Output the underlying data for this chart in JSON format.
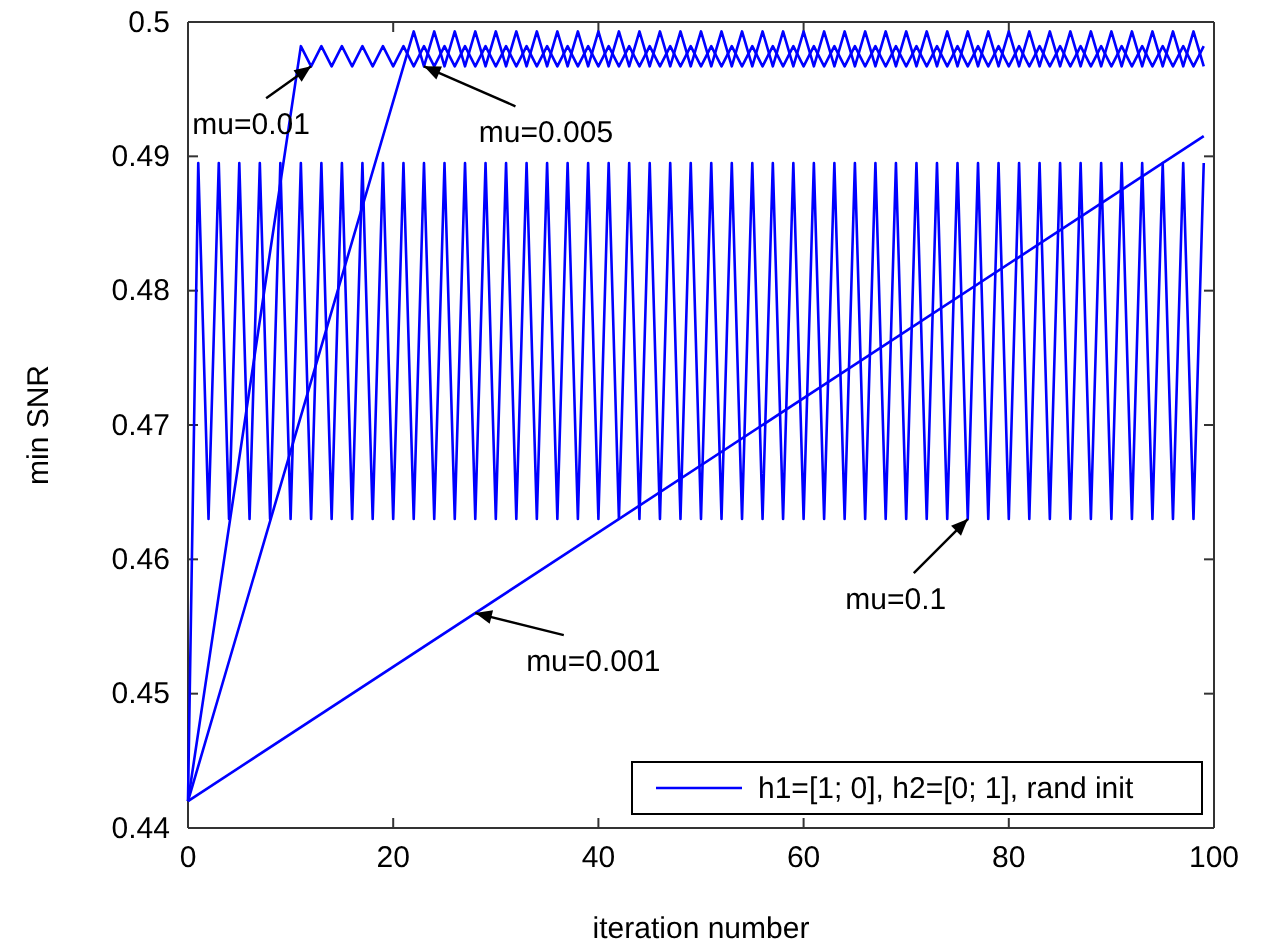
{
  "chart_data": {
    "type": "line",
    "xlabel": "iteration number",
    "ylabel": "min SNR",
    "xlim": [
      0,
      100
    ],
    "ylim": [
      0.44,
      0.5
    ],
    "xticks": [
      0,
      20,
      40,
      60,
      80,
      100
    ],
    "yticks": [
      0.44,
      0.45,
      0.46,
      0.47,
      0.48,
      0.49,
      0.5
    ],
    "grid": false,
    "legend": "bottom right",
    "marker": "none",
    "line_style": "solid",
    "series": [
      {
        "name": "h1=[1; 0], h2=[0; 1], rand init",
        "color": "#0000ff",
        "x": [
          0,
          1,
          2,
          3,
          4,
          5,
          6,
          7,
          8,
          9,
          10,
          11,
          12,
          13,
          14,
          15,
          16,
          17,
          18,
          19,
          20,
          21,
          22,
          23,
          24,
          25,
          26,
          27,
          28,
          29,
          30,
          31,
          32,
          33,
          34,
          35,
          36,
          37,
          38,
          39,
          40,
          41,
          42,
          43,
          44,
          45,
          46,
          47,
          48,
          49,
          50,
          51,
          52,
          53,
          54,
          55,
          56,
          57,
          58,
          59,
          60,
          61,
          62,
          63,
          64,
          65,
          66,
          67,
          68,
          69,
          70,
          71,
          72,
          73,
          74,
          75,
          76,
          77,
          78,
          79,
          80,
          81,
          82,
          83,
          84,
          85,
          86,
          87,
          88,
          89,
          90,
          91,
          92,
          93,
          94,
          95,
          96,
          97,
          98,
          99
        ],
        "values": [
          0.442,
          0.4895,
          0.463,
          0.4895,
          0.463,
          0.4895,
          0.463,
          0.4895,
          0.463,
          0.4895,
          0.463,
          0.4895,
          0.463,
          0.4895,
          0.463,
          0.4895,
          0.463,
          0.4895,
          0.463,
          0.4895,
          0.463,
          0.4895,
          0.463,
          0.4895,
          0.463,
          0.4895,
          0.463,
          0.4895,
          0.463,
          0.4895,
          0.463,
          0.4895,
          0.463,
          0.4895,
          0.463,
          0.4895,
          0.463,
          0.4895,
          0.463,
          0.4895,
          0.463,
          0.4895,
          0.463,
          0.4895,
          0.463,
          0.4895,
          0.463,
          0.4895,
          0.463,
          0.4895,
          0.463,
          0.4895,
          0.463,
          0.4895,
          0.463,
          0.4895,
          0.463,
          0.4895,
          0.463,
          0.4895,
          0.463,
          0.4895,
          0.463,
          0.4895,
          0.463,
          0.4895,
          0.463,
          0.4895,
          0.463,
          0.4895,
          0.463,
          0.4895,
          0.463,
          0.4895,
          0.463,
          0.4895,
          0.463,
          0.4895,
          0.463,
          0.4895,
          0.463,
          0.4895,
          0.463,
          0.4895,
          0.463,
          0.4895,
          0.463,
          0.4895,
          0.463,
          0.4895,
          0.463,
          0.4895,
          0.463,
          0.4895,
          0.463,
          0.4895,
          0.463,
          0.4895,
          0.463,
          0.4895
        ]
      },
      {
        "color": "#0000ff",
        "x": [
          0,
          11,
          12,
          13,
          14,
          15,
          16,
          17,
          18,
          19,
          20,
          21,
          22,
          23,
          24,
          25,
          26,
          27,
          28,
          29,
          30,
          31,
          32,
          33,
          34,
          35,
          36,
          37,
          38,
          39,
          40,
          41,
          42,
          43,
          44,
          45,
          46,
          47,
          48,
          49,
          50,
          51,
          52,
          53,
          54,
          55,
          56,
          57,
          58,
          59,
          60,
          61,
          62,
          63,
          64,
          65,
          66,
          67,
          68,
          69,
          70,
          71,
          72,
          73,
          74,
          75,
          76,
          77,
          78,
          79,
          80,
          81,
          82,
          83,
          84,
          85,
          86,
          87,
          88,
          89,
          90,
          91,
          92,
          93,
          94,
          95,
          96,
          97,
          98,
          99
        ],
        "values": [
          0.442,
          0.4982,
          0.4967,
          0.4982,
          0.4967,
          0.4982,
          0.4967,
          0.4982,
          0.4967,
          0.4982,
          0.4967,
          0.4982,
          0.4967,
          0.4982,
          0.4967,
          0.4982,
          0.4967,
          0.4982,
          0.4967,
          0.4982,
          0.4967,
          0.4982,
          0.4967,
          0.4982,
          0.4967,
          0.4982,
          0.4967,
          0.4982,
          0.4967,
          0.4982,
          0.4967,
          0.4982,
          0.4967,
          0.4982,
          0.4967,
          0.4982,
          0.4967,
          0.4982,
          0.4967,
          0.4982,
          0.4967,
          0.4982,
          0.4967,
          0.4982,
          0.4967,
          0.4982,
          0.4967,
          0.4982,
          0.4967,
          0.4982,
          0.4967,
          0.4982,
          0.4967,
          0.4982,
          0.4967,
          0.4982,
          0.4967,
          0.4982,
          0.4967,
          0.4982,
          0.4967,
          0.4982,
          0.4967,
          0.4982,
          0.4967,
          0.4982,
          0.4967,
          0.4982,
          0.4967,
          0.4982,
          0.4967,
          0.4982,
          0.4967,
          0.4982,
          0.4967,
          0.4982,
          0.4967,
          0.4982,
          0.4967,
          0.4982,
          0.4967,
          0.4982,
          0.4967,
          0.4982,
          0.4967,
          0.4982,
          0.4967,
          0.4982,
          0.4967,
          0.4982
        ]
      },
      {
        "color": "#0000ff",
        "x": [
          0,
          22,
          23,
          24,
          25,
          26,
          27,
          28,
          29,
          30,
          31,
          32,
          33,
          34,
          35,
          36,
          37,
          38,
          39,
          40,
          41,
          42,
          43,
          44,
          45,
          46,
          47,
          48,
          49,
          50,
          51,
          52,
          53,
          54,
          55,
          56,
          57,
          58,
          59,
          60,
          61,
          62,
          63,
          64,
          65,
          66,
          67,
          68,
          69,
          70,
          71,
          72,
          73,
          74,
          75,
          76,
          77,
          78,
          79,
          80,
          81,
          82,
          83,
          84,
          85,
          86,
          87,
          88,
          89,
          90,
          91,
          92,
          93,
          94,
          95,
          96,
          97,
          98,
          99
        ],
        "values": [
          0.442,
          0.4993,
          0.4967,
          0.4993,
          0.4967,
          0.4993,
          0.4967,
          0.4993,
          0.4967,
          0.4993,
          0.4967,
          0.4993,
          0.4967,
          0.4993,
          0.4967,
          0.4993,
          0.4967,
          0.4993,
          0.4967,
          0.4993,
          0.4967,
          0.4993,
          0.4967,
          0.4993,
          0.4967,
          0.4993,
          0.4967,
          0.4993,
          0.4967,
          0.4993,
          0.4967,
          0.4993,
          0.4967,
          0.4993,
          0.4967,
          0.4993,
          0.4967,
          0.4993,
          0.4967,
          0.4993,
          0.4967,
          0.4993,
          0.4967,
          0.4993,
          0.4967,
          0.4993,
          0.4967,
          0.4993,
          0.4967,
          0.4993,
          0.4967,
          0.4993,
          0.4967,
          0.4993,
          0.4967,
          0.4993,
          0.4967,
          0.4993,
          0.4967,
          0.4993,
          0.4967,
          0.4993,
          0.4967,
          0.4993,
          0.4967,
          0.4993,
          0.4967,
          0.4993,
          0.4967,
          0.4993,
          0.4967,
          0.4993,
          0.4967,
          0.4993,
          0.4967,
          0.4993,
          0.4967,
          0.4993,
          0.4967
        ]
      },
      {
        "color": "#0000ff",
        "x": [
          0,
          99
        ],
        "values": [
          0.442,
          0.4915
        ]
      }
    ],
    "annotations": [
      {
        "text": "mu=0.01",
        "x": 12,
        "y": 0.4967
      },
      {
        "text": "mu=0.005",
        "x": 23,
        "y": 0.4967
      },
      {
        "text": "mu=0.1",
        "x": 76,
        "y": 0.463
      },
      {
        "text": "mu=0.001",
        "x": 28,
        "y": 0.456
      }
    ]
  }
}
